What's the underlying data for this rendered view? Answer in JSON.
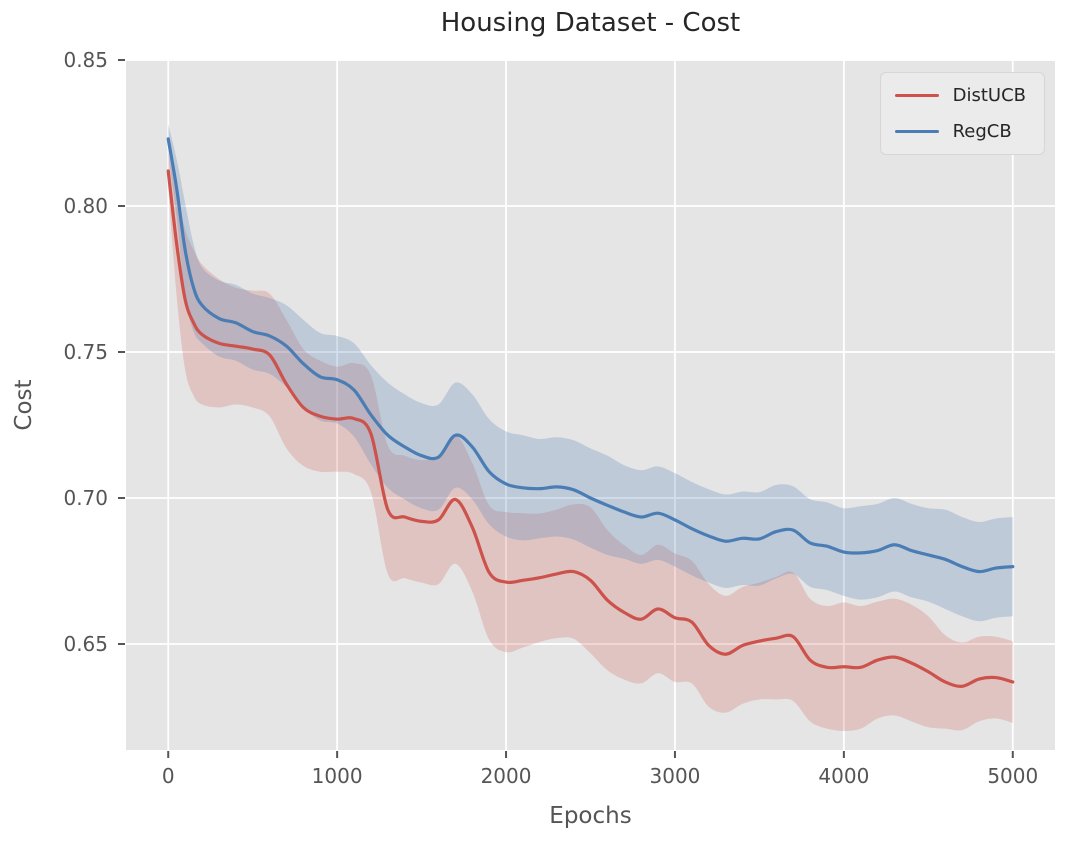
{
  "figure": {
    "title": "Housing Dataset - Cost",
    "x_axis_label": "Epochs",
    "y_axis_label": "Cost"
  },
  "legend": {
    "position": "upper right",
    "items": [
      {
        "label": "DistUCB",
        "color": "#cc524b"
      },
      {
        "label": "RegCB",
        "color": "#4b7db5"
      }
    ]
  },
  "colors": {
    "figure_background": "#ffffff",
    "plot_background": "#e5e5e5",
    "grid": "#ffffff",
    "tick_text": "#555555",
    "title_text": "#262626",
    "distucb_line": "#cc524b",
    "regcb_line": "#4b7db5",
    "distucb_band": "rgba(204,82,75,0.22)",
    "regcb_band": "rgba(75,125,181,0.25)"
  },
  "chart_data": {
    "type": "line",
    "title": "Housing Dataset - Cost",
    "xlabel": "Epochs",
    "ylabel": "Cost",
    "grid": true,
    "legend_position": "upper right",
    "xlim": [
      -250,
      5250
    ],
    "ylim": [
      0.6137,
      0.85
    ],
    "xticks": [
      0,
      1000,
      2000,
      3000,
      4000,
      5000
    ],
    "yticks": [
      0.65,
      0.7,
      0.75,
      0.8,
      0.85
    ],
    "x": [
      0,
      50,
      100,
      150,
      200,
      300,
      400,
      500,
      600,
      700,
      800,
      900,
      1000,
      1100,
      1200,
      1300,
      1400,
      1500,
      1600,
      1700,
      1800,
      1900,
      2000,
      2100,
      2200,
      2300,
      2400,
      2500,
      2600,
      2700,
      2800,
      2900,
      3000,
      3100,
      3200,
      3300,
      3400,
      3500,
      3600,
      3700,
      3800,
      3900,
      4000,
      4100,
      4200,
      4300,
      4400,
      4500,
      4600,
      4700,
      4800,
      4900,
      5000
    ],
    "series": [
      {
        "name": "DistUCB",
        "color": "#cc524b",
        "values": [
          0.812,
          0.787,
          0.768,
          0.76,
          0.756,
          0.753,
          0.752,
          0.751,
          0.749,
          0.739,
          0.731,
          0.728,
          0.727,
          0.7272,
          0.722,
          0.696,
          0.6935,
          0.692,
          0.6925,
          0.6995,
          0.69,
          0.6745,
          0.6712,
          0.6718,
          0.6727,
          0.674,
          0.6748,
          0.6718,
          0.665,
          0.6608,
          0.6585,
          0.662,
          0.659,
          0.6575,
          0.6495,
          0.6465,
          0.6495,
          0.651,
          0.652,
          0.6525,
          0.6445,
          0.642,
          0.6422,
          0.642,
          0.6445,
          0.6455,
          0.6435,
          0.6405,
          0.637,
          0.6355,
          0.638,
          0.6385,
          0.637
        ],
        "band_halfwidth": [
          0.006,
          0.018,
          0.024,
          0.025,
          0.024,
          0.022,
          0.02,
          0.02,
          0.021,
          0.022,
          0.02,
          0.019,
          0.018,
          0.019,
          0.02,
          0.022,
          0.021,
          0.021,
          0.022,
          0.022,
          0.022,
          0.023,
          0.024,
          0.023,
          0.022,
          0.022,
          0.023,
          0.025,
          0.024,
          0.023,
          0.022,
          0.022,
          0.022,
          0.021,
          0.021,
          0.02,
          0.02,
          0.02,
          0.021,
          0.022,
          0.021,
          0.021,
          0.022,
          0.021,
          0.02,
          0.02,
          0.02,
          0.019,
          0.016,
          0.015,
          0.0145,
          0.014,
          0.014
        ]
      },
      {
        "name": "RegCB",
        "color": "#4b7db5",
        "values": [
          0.823,
          0.806,
          0.785,
          0.772,
          0.766,
          0.7615,
          0.76,
          0.757,
          0.7555,
          0.752,
          0.746,
          0.7415,
          0.7405,
          0.737,
          0.7285,
          0.7215,
          0.7175,
          0.7145,
          0.714,
          0.7215,
          0.7175,
          0.709,
          0.7048,
          0.7035,
          0.7032,
          0.7038,
          0.7028,
          0.7,
          0.6975,
          0.6952,
          0.6935,
          0.6948,
          0.6925,
          0.6895,
          0.687,
          0.6852,
          0.6862,
          0.686,
          0.6885,
          0.689,
          0.6846,
          0.6835,
          0.6815,
          0.6812,
          0.682,
          0.684,
          0.682,
          0.6805,
          0.679,
          0.6765,
          0.6748,
          0.676,
          0.6765
        ],
        "band_halfwidth": [
          0.005,
          0.01,
          0.016,
          0.015,
          0.013,
          0.013,
          0.013,
          0.013,
          0.013,
          0.014,
          0.015,
          0.015,
          0.015,
          0.016,
          0.017,
          0.018,
          0.018,
          0.018,
          0.018,
          0.018,
          0.018,
          0.018,
          0.018,
          0.018,
          0.017,
          0.017,
          0.017,
          0.017,
          0.017,
          0.016,
          0.016,
          0.016,
          0.016,
          0.016,
          0.016,
          0.016,
          0.016,
          0.016,
          0.016,
          0.015,
          0.015,
          0.015,
          0.015,
          0.016,
          0.016,
          0.016,
          0.016,
          0.016,
          0.017,
          0.017,
          0.017,
          0.017,
          0.017
        ]
      }
    ]
  }
}
